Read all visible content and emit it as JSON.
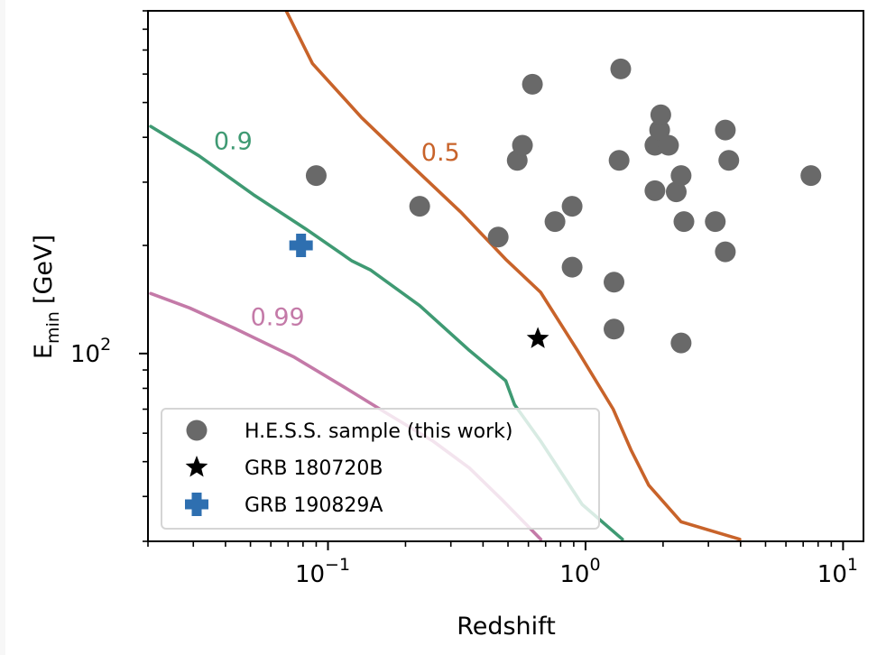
{
  "chart_data": {
    "type": "scatter",
    "title": "",
    "xlabel": "Redshift",
    "ylabel": "E",
    "ylabel_subscript": "min",
    "ylabel_unit": "[GeV]",
    "xscale": "log",
    "yscale": "log",
    "xlim": [
      0.02,
      12
    ],
    "ylim": [
      30,
      900
    ],
    "grid": false,
    "x_ticks": [
      {
        "value": 0.1,
        "base": "10",
        "exp": "−1"
      },
      {
        "value": 1,
        "base": "10",
        "exp": "0"
      },
      {
        "value": 10,
        "base": "10",
        "exp": "1"
      }
    ],
    "y_ticks": [
      {
        "value": 100,
        "base": "10",
        "exp": "2"
      }
    ],
    "legend": {
      "placement": "lower-left",
      "entries": [
        {
          "label": "H.E.S.S. sample (this work)",
          "marker": "circle",
          "color": "#696969"
        },
        {
          "label": "GRB 180720B",
          "marker": "star",
          "color": "#000000"
        },
        {
          "label": "GRB 190829A",
          "marker": "plus",
          "color": "#2e6fb0"
        }
      ]
    },
    "series": [
      {
        "name": "H.E.S.S. sample (this work)",
        "marker": "circle",
        "color": "#696969",
        "points": [
          [
            0.09,
            313
          ],
          [
            0.227,
            257
          ],
          [
            0.458,
            211
          ],
          [
            0.543,
            345
          ],
          [
            0.569,
            380
          ],
          [
            0.622,
            562
          ],
          [
            0.761,
            233
          ],
          [
            0.887,
            257
          ],
          [
            0.887,
            174
          ],
          [
            1.29,
            158
          ],
          [
            1.29,
            117
          ],
          [
            1.35,
            345
          ],
          [
            1.37,
            620
          ],
          [
            1.86,
            284
          ],
          [
            1.86,
            380
          ],
          [
            1.94,
            419
          ],
          [
            1.96,
            462
          ],
          [
            2.1,
            380
          ],
          [
            2.25,
            282
          ],
          [
            2.35,
            313
          ],
          [
            2.41,
            233
          ],
          [
            2.35,
            107
          ],
          [
            3.19,
            233
          ],
          [
            3.49,
            419
          ],
          [
            3.6,
            345
          ],
          [
            3.49,
            192
          ],
          [
            7.5,
            313
          ]
        ]
      },
      {
        "name": "GRB 180720B",
        "marker": "star",
        "color": "#000000",
        "points": [
          [
            0.653,
            110
          ]
        ]
      },
      {
        "name": "GRB 190829A",
        "marker": "plus",
        "color": "#2e6fb0",
        "points": [
          [
            0.0786,
            200
          ]
        ]
      }
    ],
    "contours": [
      {
        "label": "0.5",
        "color": "#c8632a",
        "label_at": [
          0.23,
          345
        ],
        "points": [
          [
            0.069,
            897
          ],
          [
            0.087,
            642
          ],
          [
            0.135,
            454
          ],
          [
            0.21,
            335
          ],
          [
            0.327,
            248
          ],
          [
            0.49,
            183
          ],
          [
            0.67,
            148
          ],
          [
            0.93,
            102
          ],
          [
            1.28,
            70
          ],
          [
            1.5,
            54
          ],
          [
            1.76,
            43
          ],
          [
            2.35,
            34
          ],
          [
            3.97,
            30.4
          ]
        ]
      },
      {
        "label": "0.9",
        "color": "#3f9a73",
        "label_at": [
          0.036,
          370
        ],
        "points": [
          [
            0.0205,
            429
          ],
          [
            0.0316,
            355
          ],
          [
            0.0513,
            277
          ],
          [
            0.083,
            221
          ],
          [
            0.124,
            181
          ],
          [
            0.146,
            171
          ],
          [
            0.227,
            136
          ],
          [
            0.354,
            102
          ],
          [
            0.49,
            84
          ],
          [
            0.53,
            72
          ],
          [
            0.67,
            57
          ],
          [
            0.97,
            38
          ],
          [
            1.39,
            30.4
          ]
        ]
      },
      {
        "label": "0.99",
        "color": "#c47aa8",
        "label_at": [
          0.05,
          120
        ],
        "points": [
          [
            0.0205,
            147
          ],
          [
            0.029,
            134
          ],
          [
            0.044,
            117
          ],
          [
            0.074,
            97.7
          ],
          [
            0.115,
            80.8
          ],
          [
            0.17,
            68
          ],
          [
            0.256,
            57
          ],
          [
            0.354,
            48
          ],
          [
            0.47,
            39.4
          ],
          [
            0.67,
            30.4
          ]
        ]
      }
    ]
  }
}
